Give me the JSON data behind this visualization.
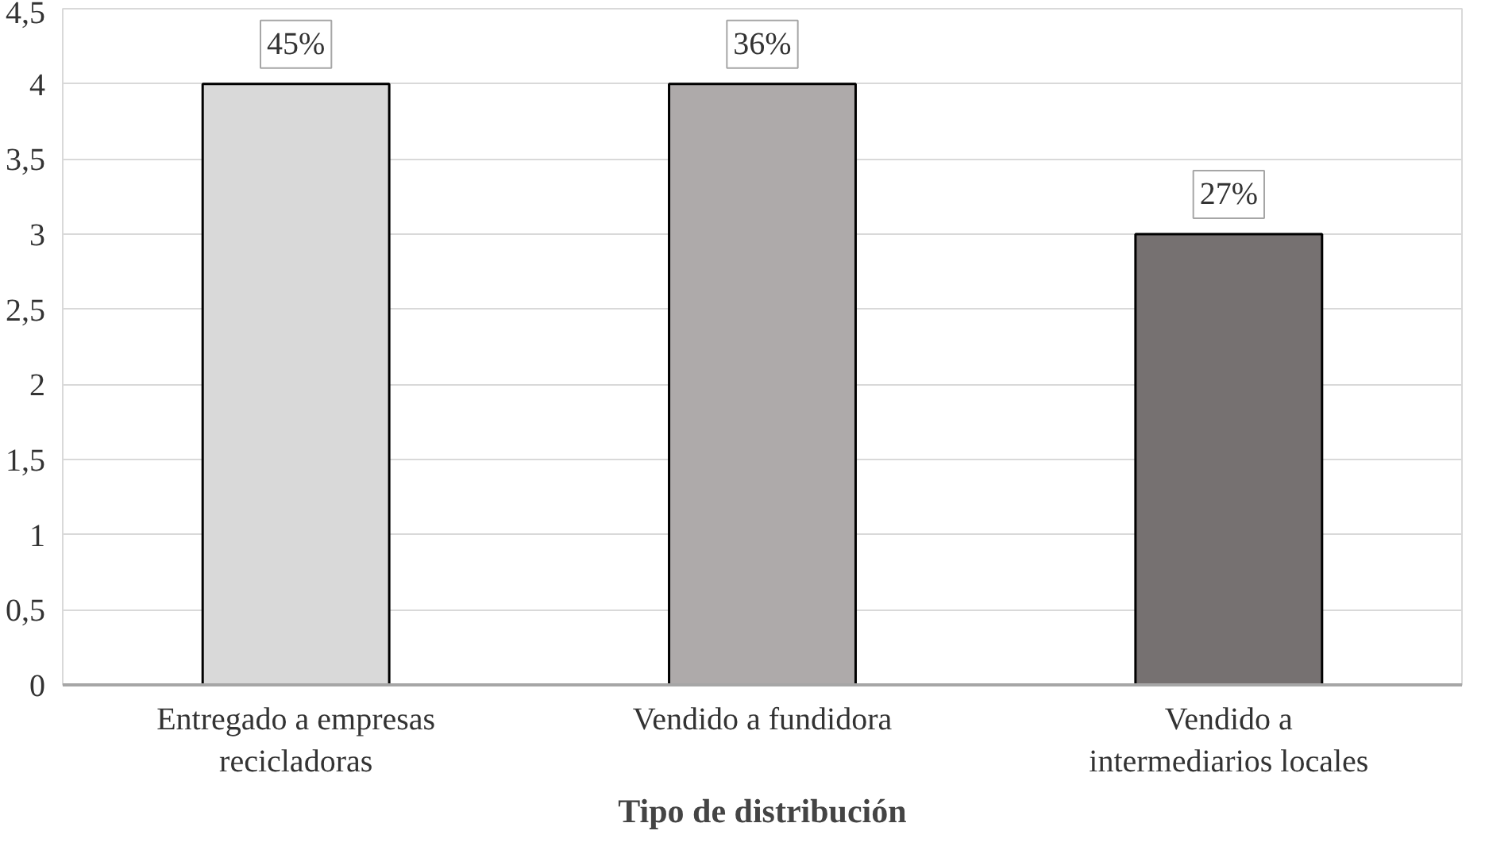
{
  "chart_data": {
    "type": "bar",
    "xlabel": "Tipo de distribución",
    "categories": [
      "Entregado a empresas recicladoras",
      "Vendido a fundidora",
      "Vendido a intermediarios locales"
    ],
    "values": [
      4,
      4,
      3
    ],
    "colors": [
      "#d9d9d9",
      "#aeaaaa",
      "#767171"
    ],
    "annotations": [
      {
        "text": "45%",
        "x": "Entregado a empresas recicladoras",
        "y": 4
      },
      {
        "text": "36%",
        "x": "Vendido a fundidora",
        "y": 4
      },
      {
        "text": "27%",
        "x": "Vendido a intermediarios locales",
        "y": 3
      }
    ],
    "ylim": [
      0,
      4.5
    ],
    "yticks": [
      0,
      {
        "value": 0.5,
        "label": "0,5"
      },
      1,
      {
        "value": 1.5,
        "label": "1,5"
      },
      2,
      {
        "value": 2.5,
        "label": "2,5"
      },
      3,
      {
        "value": 3.5,
        "label": "3,5"
      },
      4,
      {
        "value": 4.5,
        "label": "4,5"
      }
    ],
    "grid": "y"
  }
}
